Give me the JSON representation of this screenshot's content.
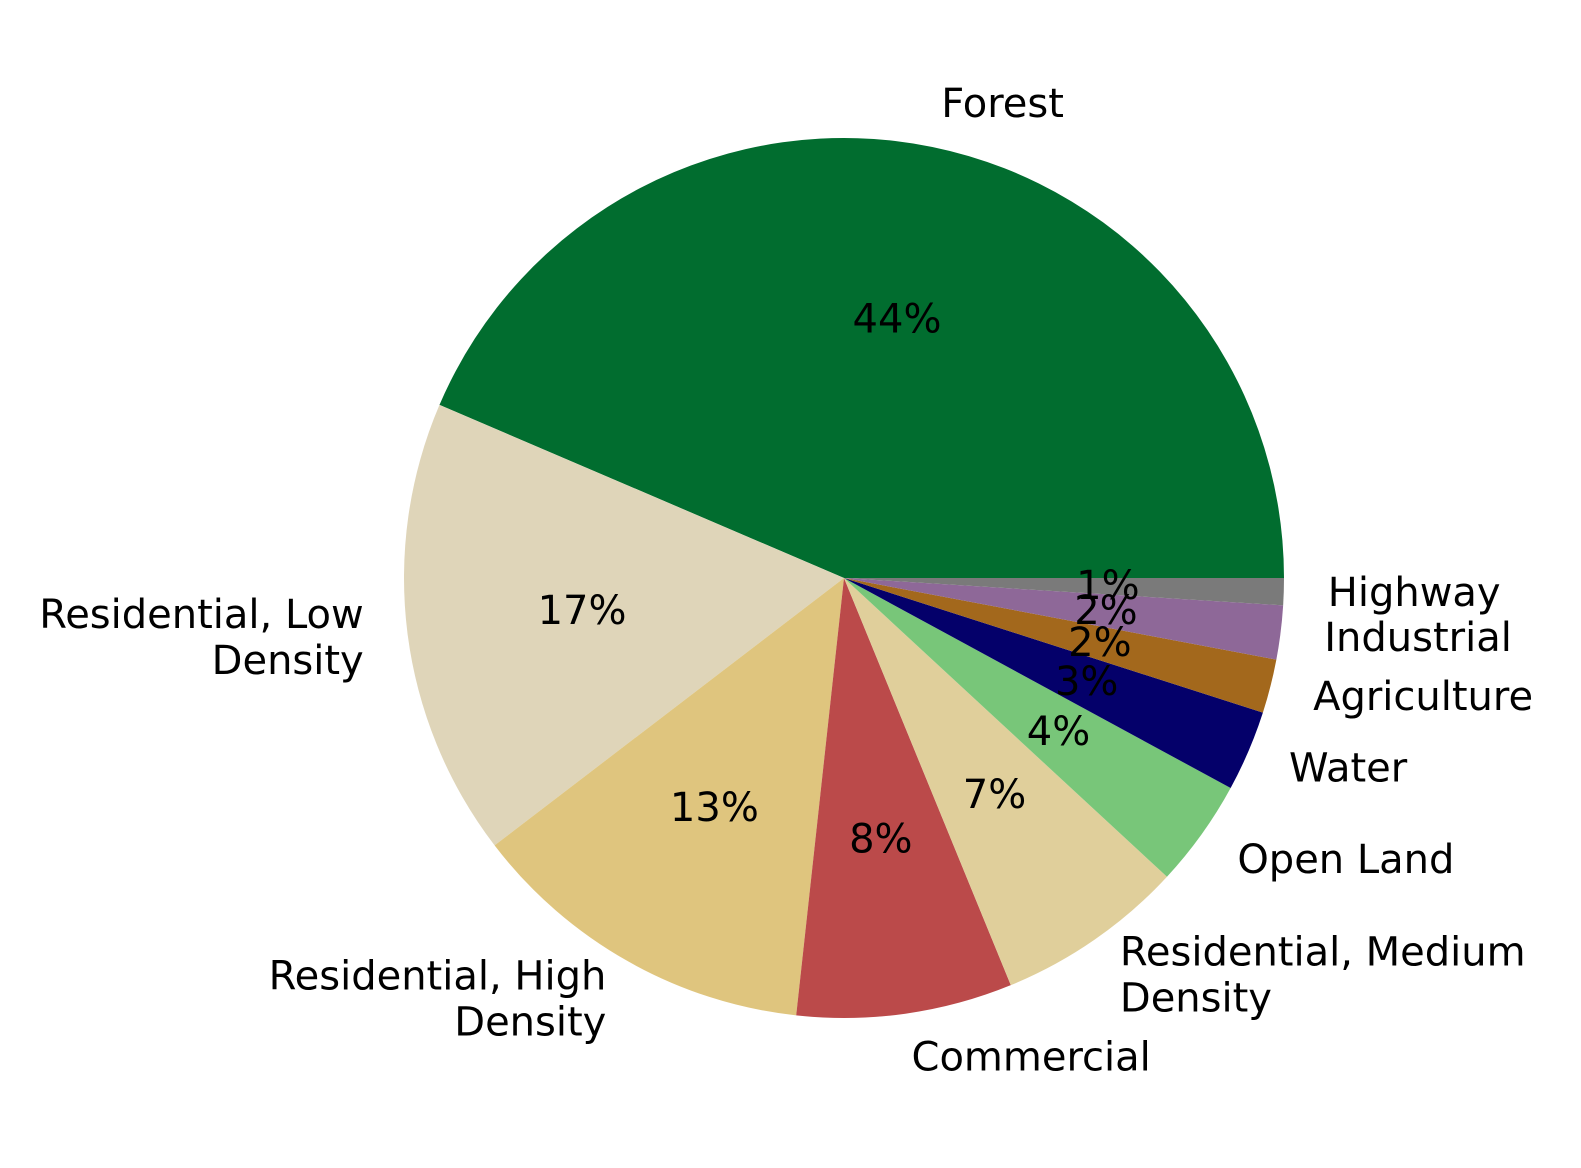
{
  "chart_data": {
    "type": "pie",
    "title": "",
    "categories": [
      "Forest",
      "Residential, Low Density",
      "Residential, High Density",
      "Commercial",
      "Residential, Medium Density",
      "Open Land",
      "Water",
      "Agriculture",
      "Industrial",
      "Highway"
    ],
    "label_lines": [
      [
        "Forest"
      ],
      [
        "Residential, Low",
        "Density"
      ],
      [
        "Residential, High",
        "Density"
      ],
      [
        "Commercial"
      ],
      [
        "Residential, Medium",
        "Density"
      ],
      [
        "Open Land"
      ],
      [
        "Water"
      ],
      [
        "Agriculture"
      ],
      [
        "Industrial"
      ],
      [
        "Highway"
      ]
    ],
    "values": [
      44,
      17,
      13,
      8,
      7,
      4,
      3,
      2,
      2,
      1
    ],
    "value_labels": [
      "44%",
      "17%",
      "13%",
      "8%",
      "7%",
      "4%",
      "3%",
      "2%",
      "2%",
      "1%"
    ],
    "colors": [
      "#016d2f",
      "#dfd5b9",
      "#dfc57e",
      "#bb4a4a",
      "#e0cf9b",
      "#78c679",
      "#04006a",
      "#a3681c",
      "#8e6898",
      "#7a7a7a"
    ],
    "start_angle_deg": 0,
    "direction": "counterclockwise"
  }
}
